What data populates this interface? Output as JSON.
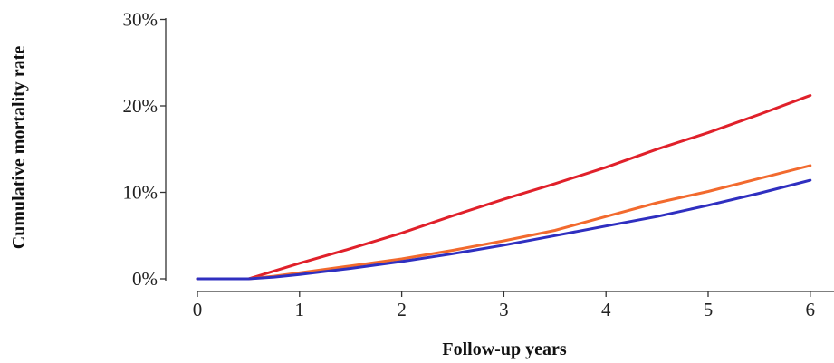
{
  "chart_data": {
    "type": "line",
    "title": "",
    "xlabel": "Follow-up years",
    "ylabel": "Cumulative mortality rate",
    "xlim": [
      0,
      6
    ],
    "ylim": [
      0,
      30
    ],
    "x_ticks": [
      "0",
      "1",
      "2",
      "3",
      "4",
      "5",
      "6"
    ],
    "y_ticks": [
      "0%",
      "10%",
      "20%",
      "30%"
    ],
    "grid": false,
    "legend": "none",
    "series": [
      {
        "color": "#e0202a",
        "x": [
          0,
          0.5,
          0.75,
          1,
          1.5,
          2,
          2.5,
          3,
          3.5,
          4,
          4.5,
          5,
          5.5,
          6
        ],
        "y": [
          0,
          0,
          0.9,
          1.8,
          3.5,
          5.3,
          7.3,
          9.2,
          11.0,
          12.9,
          15.0,
          16.9,
          19.0,
          21.2
        ]
      },
      {
        "color": "#f26a2e",
        "x": [
          0,
          0.5,
          0.75,
          1,
          1.5,
          2,
          2.5,
          3,
          3.5,
          4,
          4.5,
          5,
          5.5,
          6
        ],
        "y": [
          0,
          0,
          0.3,
          0.7,
          1.5,
          2.3,
          3.3,
          4.4,
          5.6,
          7.2,
          8.8,
          10.1,
          11.6,
          13.1
        ]
      },
      {
        "color": "#2f2fc0",
        "x": [
          0,
          0.5,
          0.75,
          1,
          1.5,
          2,
          2.5,
          3,
          3.5,
          4,
          4.5,
          5,
          5.5,
          6
        ],
        "y": [
          0,
          0,
          0.2,
          0.5,
          1.2,
          2.0,
          2.9,
          3.9,
          5.0,
          6.1,
          7.2,
          8.5,
          9.9,
          11.4
        ]
      }
    ]
  }
}
